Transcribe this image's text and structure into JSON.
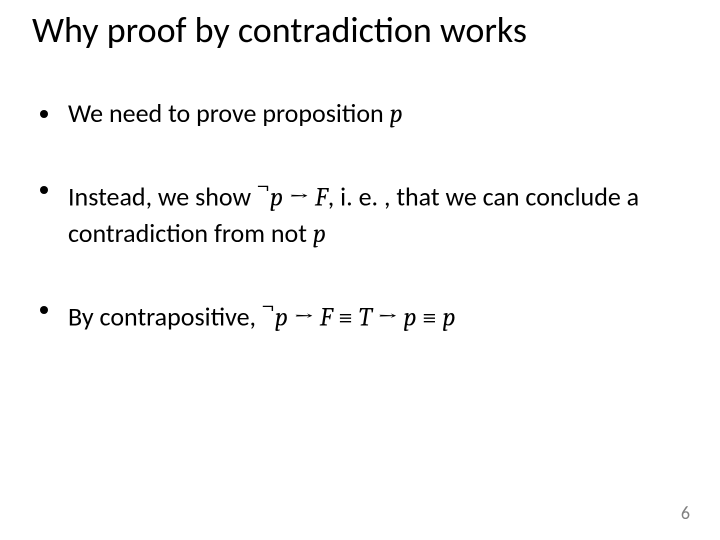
{
  "slide": {
    "title": "Why proof by contradiction works",
    "pageNumber": "6",
    "bullets": {
      "b1": {
        "t1": "We need to prove proposition ",
        "p": "p"
      },
      "b2": {
        "t1": "Instead, we show ",
        "neg": "¬",
        "p1": "p",
        "arrow": " → ",
        "F": "F",
        "t2": ", i. e. , that we can conclude a contradiction from not ",
        "p2": "p"
      },
      "b3": {
        "t1": "By contrapositive, ",
        "neg": "¬",
        "p1": "p",
        "arrow1": " → ",
        "F": "F",
        "equiv1": " ≡ ",
        "T": "T",
        "arrow2": " → ",
        "p2": "p",
        "equiv2": " ≡ ",
        "p3": "p"
      }
    }
  }
}
